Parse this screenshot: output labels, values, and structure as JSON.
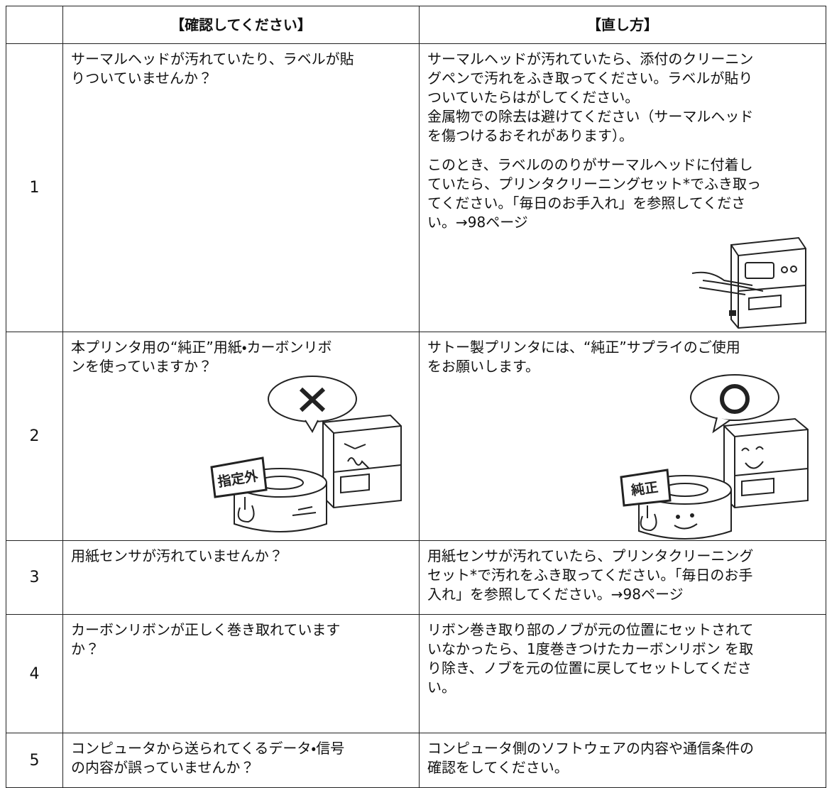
{
  "table": {
    "header": [
      "【確認してください】",
      "【直し方】"
    ],
    "rows": [
      {
        "no": "1",
        "check": [
          [
            "サーマルヘッドが汚れていたり、ラベルが貼",
            "りついていませんか？"
          ]
        ],
        "fix": [
          [
            "サーマルヘッドが汚れていたら、添付のクリーニン",
            "グペンで汚れをふき取ってください。ラベルが貼り",
            "ついていたらはがしてください。",
            "金属物での除去は避けてください（サーマルヘッド",
            "を傷つけるおそれがあります）。"
          ],
          [
            "このとき、ラベルののりがサーマルヘッドに付着し",
            "ていたら、プリンタクリーニングセット*でふき取っ",
            "てください。「毎日のお手入れ」を参照してくださ",
            "い。→98ページ"
          ]
        ]
      },
      {
        "no": "2",
        "check": [
          [
            "本プリンタ用の“純正”用紙・カーボンリボ",
            "ンを使っていますか？"
          ]
        ],
        "check_sign": "指定外",
        "fix": [
          [
            "サトー製プリンタには、“純正”サプライのご使用",
            "をお願いします。"
          ]
        ],
        "fix_sign": "純正"
      },
      {
        "no": "3",
        "check": [
          [
            "用紙センサが汚れていませんか？"
          ]
        ],
        "fix": [
          [
            "用紙センサが汚れていたら、プリンタクリーニング",
            "セット*で汚れをふき取ってください。「毎日のお手",
            "入れ」を参照してください。→98ページ"
          ]
        ]
      },
      {
        "no": "4",
        "check": [
          [
            "カーボンリボンが正しく巻き取れています",
            "か？"
          ]
        ],
        "fix": [
          [
            "リボン巻き取り部のノブが元の位置にセットされて",
            "いなかったら、1度巻きつけたカーボンリボン を取",
            "り除き、ノブを元の位置に戻してセットしてくださ",
            "い。"
          ]
        ]
      },
      {
        "no": "5",
        "check": [
          [
            "コンピュータから送られてくるデータ・信号",
            "の内容が誤っていませんか？"
          ]
        ],
        "fix": [
          [
            "コンピュータ側のソフトウェアの内容や通信条件の",
            "確認をしてください。"
          ]
        ]
      }
    ]
  }
}
